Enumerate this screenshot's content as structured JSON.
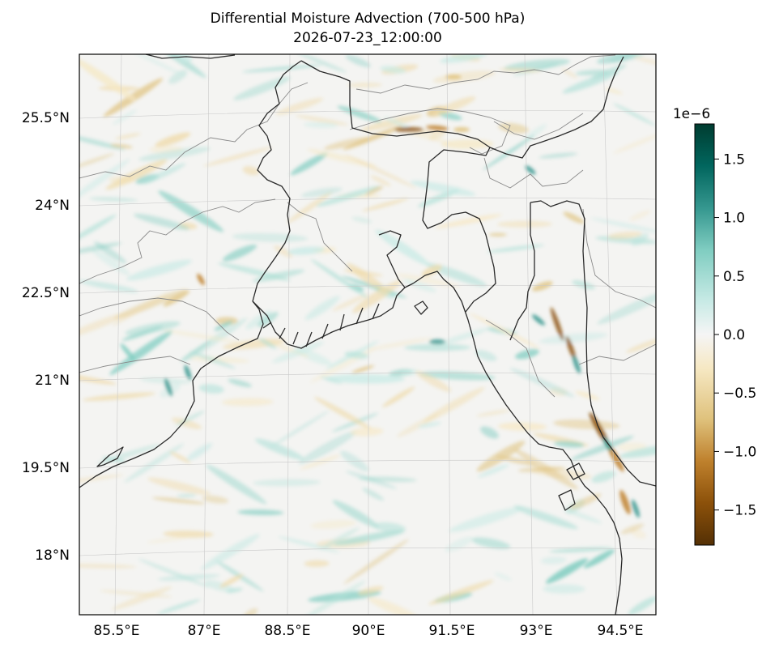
{
  "figure": {
    "title_line1": "Differential Moisture Advection (700-500 hPa)",
    "title_line2": "2026-07-23_12:00:00"
  },
  "map": {
    "projection": "lambert-conformal",
    "lon_range": [
      84.5,
      95.0
    ],
    "lat_range": [
      17.0,
      26.5
    ],
    "lon_ticks": [
      "85.5°E",
      "87°E",
      "88.5°E",
      "90°E",
      "91.5°E",
      "93°E",
      "94.5°E"
    ],
    "lat_ticks": [
      "25.5°N",
      "24°N",
      "22.5°N",
      "21°N",
      "19.5°N",
      "18°N"
    ],
    "gridlines": true,
    "coastline_color": "#2a2a2a",
    "border_color": "#8a8a8a",
    "features": [
      "coastline",
      "country-borders",
      "state-borders"
    ]
  },
  "colorbar": {
    "colormap": "BrBG",
    "scale_label": "1e−6",
    "vmin": -1.8,
    "vmax": 1.8,
    "ticks": [
      "1.5",
      "1.0",
      "0.5",
      "0.0",
      "−0.5",
      "−1.0",
      "−1.5"
    ],
    "tick_values": [
      1.5,
      1.0,
      0.5,
      0.0,
      -0.5,
      -1.0,
      -1.5
    ],
    "colors": [
      "#543005",
      "#8c510a",
      "#bf812d",
      "#dfc27d",
      "#f6e8c3",
      "#f5f5f5",
      "#c7eae5",
      "#80cdc1",
      "#35978f",
      "#01665e",
      "#003c30"
    ]
  }
}
